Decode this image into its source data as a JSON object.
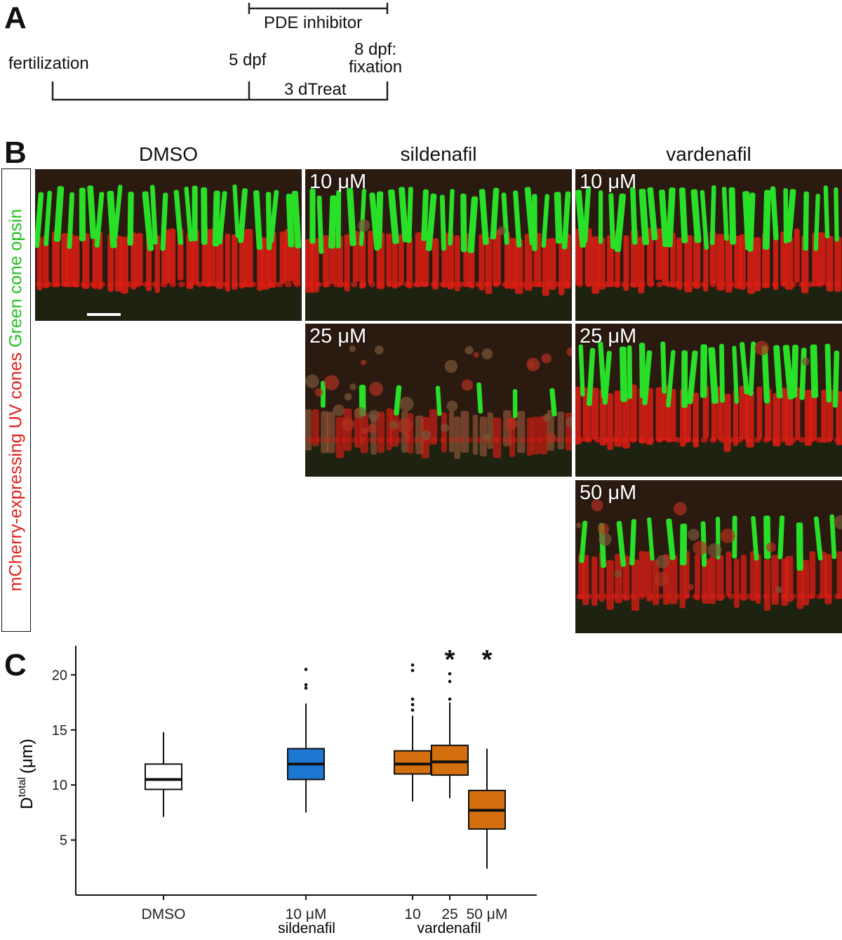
{
  "panels": {
    "a": "A",
    "b": "B",
    "c": "C"
  },
  "timeline": {
    "fertilization": "fertilization",
    "day5": "5 dpf",
    "day8_line1": "8 dpf:",
    "day8_line2": "fixation",
    "treat": "3 dTreat",
    "inhibitor": "PDE inhibitor"
  },
  "micrographs": {
    "col_dmso": "DMSO",
    "col_sildenafil": "sildenafil",
    "col_vardenafil": "vardenafil",
    "side_label_red": "mCherry-expressing UV cones",
    "side_label_green": "Green cone opsin",
    "images": [
      {
        "id": "dmso",
        "dose": "",
        "density": 1.0,
        "disruption": 0.0
      },
      {
        "id": "sil10",
        "dose": "10 μM",
        "density": 1.0,
        "disruption": 0.05
      },
      {
        "id": "vard10",
        "dose": "10 μM",
        "density": 1.0,
        "disruption": 0.0
      },
      {
        "id": "sil25",
        "dose": "25 μM",
        "density": 0.25,
        "disruption": 0.9
      },
      {
        "id": "vard25",
        "dose": "25 μM",
        "density": 1.0,
        "disruption": 0.05
      },
      {
        "id": "vard50",
        "dose": "50 μM",
        "density": 0.6,
        "disruption": 0.4
      }
    ],
    "colors": {
      "red": "#e01e14",
      "green": "#28e028",
      "background": "#2a1a10"
    }
  },
  "chart_data": {
    "type": "box",
    "ylabel_main": "D",
    "ylabel_sup": "total",
    "ylabel_unit": "(μm)",
    "ylim": [
      0,
      22
    ],
    "yticks": [
      5,
      10,
      15,
      20
    ],
    "groups": [
      {
        "label": "DMSO",
        "q1": 9.6,
        "median": 10.5,
        "q3": 11.9,
        "whisker_low": 7.1,
        "whisker_high": 14.8,
        "outliers": [],
        "color": "#ffffff",
        "significant": false
      },
      {
        "label": "10 μM",
        "q1": 10.5,
        "median": 11.9,
        "q3": 13.3,
        "whisker_low": 7.5,
        "whisker_high": 17.4,
        "outliers": [
          18.8,
          19.1,
          20.5
        ],
        "color": "#1f77d4",
        "significant": false
      },
      {
        "label": "10",
        "q1": 11.0,
        "median": 11.9,
        "q3": 13.1,
        "whisker_low": 8.5,
        "whisker_high": 16.3,
        "outliers": [
          16.8,
          17.3,
          17.8,
          20.4,
          20.9
        ],
        "color": "#d46f10",
        "significant": false
      },
      {
        "label": "25",
        "q1": 10.9,
        "median": 12.1,
        "q3": 13.6,
        "whisker_low": 8.8,
        "whisker_high": 17.5,
        "outliers": [
          17.8,
          19.4,
          20.1
        ],
        "color": "#d46f10",
        "significant": true
      },
      {
        "label": "50 μM",
        "q1": 6.0,
        "median": 7.7,
        "q3": 9.5,
        "whisker_low": 2.4,
        "whisker_high": 13.3,
        "outliers": [],
        "color": "#d46f10",
        "significant": true
      }
    ],
    "group_labels": {
      "sildenafil": "sildenafil",
      "vardenafil": "vardenafil"
    },
    "significance_marker": "*"
  }
}
